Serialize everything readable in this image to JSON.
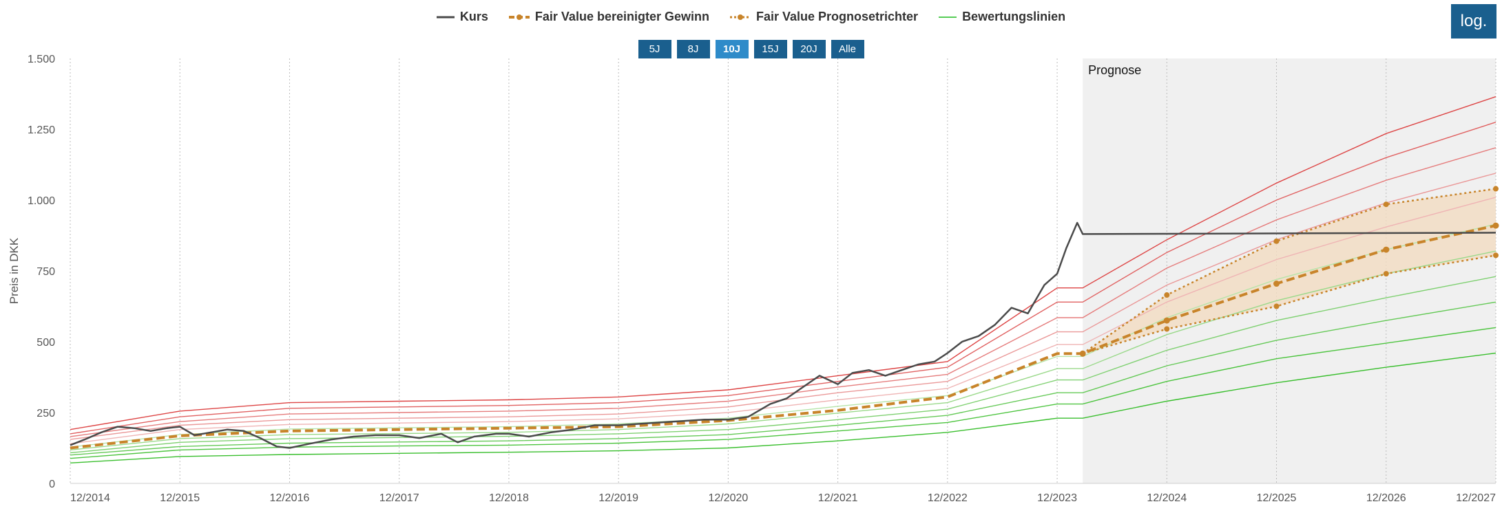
{
  "legend": {
    "kurs": "Kurs",
    "fv_gewinn": "Fair Value bereinigter Gewinn",
    "fv_trichter": "Fair Value Prognosetrichter",
    "bewertung": "Bewertungslinien"
  },
  "range_buttons": [
    {
      "label": "5J",
      "active": false
    },
    {
      "label": "8J",
      "active": false
    },
    {
      "label": "10J",
      "active": true
    },
    {
      "label": "15J",
      "active": false
    },
    {
      "label": "20J",
      "active": false
    },
    {
      "label": "Alle",
      "active": false
    }
  ],
  "log_button": "log.",
  "colors": {
    "kurs": "#4a4a4a",
    "fair_value": "#c8842a",
    "funnel_fill": "#f3dcc2",
    "forecast_bg": "#f0f0f0",
    "band_red": "#e05a5a",
    "band_green": "#55cc55",
    "button": "#1a5f8e",
    "button_active": "#2e8bc9"
  },
  "chart_data": {
    "type": "line",
    "ylabel": "Preis in DKK",
    "ylim": [
      0,
      1500
    ],
    "yticks": [
      0,
      250,
      500,
      750,
      1000,
      1250,
      1500
    ],
    "ytick_labels": [
      "0",
      "250",
      "500",
      "750",
      "1.000",
      "1.250",
      "1.500"
    ],
    "xlim": [
      2014.917,
      2027.917
    ],
    "xticks": [
      2014.917,
      2015.917,
      2016.917,
      2017.917,
      2018.917,
      2019.917,
      2020.917,
      2021.917,
      2022.917,
      2023.917,
      2024.917,
      2025.917,
      2026.917,
      2027.917
    ],
    "xtick_labels": [
      "12/2014",
      "12/2015",
      "12/2016",
      "12/2017",
      "12/2018",
      "12/2019",
      "12/2020",
      "12/2021",
      "12/2022",
      "12/2023",
      "12/2024",
      "12/2025",
      "12/2026",
      "12/2027"
    ],
    "forecast_label": "Prognose",
    "forecast_start": 2024.15,
    "series": [
      {
        "name": "Kurs",
        "x": [
          2014.917,
          2015.05,
          2015.2,
          2015.35,
          2015.5,
          2015.65,
          2015.8,
          2015.917,
          2016.05,
          2016.2,
          2016.35,
          2016.5,
          2016.65,
          2016.8,
          2016.917,
          2017.1,
          2017.3,
          2017.5,
          2017.7,
          2017.917,
          2018.1,
          2018.3,
          2018.45,
          2018.6,
          2018.8,
          2018.917,
          2019.1,
          2019.3,
          2019.5,
          2019.7,
          2019.917,
          2020.1,
          2020.3,
          2020.5,
          2020.7,
          2020.917,
          2021.1,
          2021.3,
          2021.45,
          2021.6,
          2021.75,
          2021.917,
          2022.05,
          2022.2,
          2022.35,
          2022.5,
          2022.65,
          2022.8,
          2022.917,
          2023.05,
          2023.2,
          2023.35,
          2023.5,
          2023.65,
          2023.8,
          2023.917,
          2024.0,
          2024.1,
          2024.15,
          2027.917
        ],
        "y": [
          135,
          155,
          180,
          200,
          195,
          185,
          195,
          200,
          170,
          180,
          190,
          185,
          160,
          130,
          125,
          140,
          155,
          165,
          170,
          170,
          160,
          175,
          145,
          165,
          175,
          175,
          165,
          180,
          190,
          205,
          205,
          210,
          215,
          220,
          225,
          225,
          235,
          280,
          300,
          340,
          380,
          350,
          390,
          400,
          380,
          400,
          420,
          430,
          460,
          500,
          520,
          560,
          620,
          600,
          700,
          740,
          830,
          920,
          880,
          885
        ]
      },
      {
        "name": "Fair Value bereinigter Gewinn",
        "x": [
          2014.917,
          2015.917,
          2016.917,
          2017.917,
          2018.917,
          2019.917,
          2020.917,
          2021.917,
          2022.917,
          2023.917,
          2024.15,
          2024.917,
          2025.917,
          2026.917,
          2027.917
        ],
        "y": [
          125,
          168,
          185,
          190,
          195,
          200,
          222,
          258,
          305,
          458,
          458,
          575,
          705,
          825,
          910
        ]
      },
      {
        "name": "Fair Value Prognosetrichter",
        "x": [
          2024.15,
          2024.917,
          2025.917,
          2026.917,
          2027.917
        ],
        "upper": [
          458,
          665,
          855,
          985,
          1040
        ],
        "lower": [
          458,
          545,
          625,
          740,
          805
        ]
      }
    ],
    "valuation_lines": {
      "name": "Bewertungslinien",
      "x": [
        2014.917,
        2015.917,
        2016.917,
        2017.917,
        2018.917,
        2019.917,
        2020.917,
        2021.917,
        2022.917,
        2023.917,
        2024.15,
        2024.917,
        2025.917,
        2026.917,
        2027.917
      ],
      "lines": [
        [
          190,
          255,
          285,
          290,
          295,
          305,
          330,
          380,
          430,
          690,
          690,
          860,
          1060,
          1235,
          1365
        ],
        [
          175,
          235,
          265,
          270,
          275,
          285,
          310,
          360,
          410,
          640,
          640,
          815,
          1000,
          1150,
          1275
        ],
        [
          165,
          218,
          245,
          250,
          255,
          265,
          290,
          340,
          385,
          585,
          585,
          760,
          930,
          1070,
          1185
        ],
        [
          155,
          205,
          225,
          230,
          235,
          245,
          270,
          320,
          360,
          535,
          535,
          700,
          860,
          990,
          1095
        ],
        [
          140,
          190,
          208,
          213,
          218,
          228,
          250,
          295,
          335,
          490,
          490,
          640,
          790,
          905,
          1010
        ],
        [
          128,
          172,
          192,
          196,
          200,
          210,
          230,
          272,
          310,
          448,
          448,
          585,
          720,
          825,
          915
        ],
        [
          118,
          158,
          172,
          176,
          180,
          190,
          210,
          248,
          285,
          405,
          405,
          525,
          645,
          740,
          820
        ],
        [
          108,
          145,
          158,
          162,
          166,
          175,
          190,
          225,
          262,
          365,
          365,
          470,
          575,
          655,
          730
        ],
        [
          100,
          130,
          142,
          146,
          150,
          158,
          172,
          205,
          240,
          320,
          320,
          415,
          505,
          575,
          640
        ],
        [
          88,
          118,
          128,
          132,
          135,
          142,
          155,
          185,
          215,
          280,
          280,
          360,
          440,
          495,
          550
        ],
        [
          72,
          95,
          102,
          106,
          110,
          115,
          125,
          150,
          180,
          230,
          230,
          290,
          355,
          410,
          460
        ]
      ]
    }
  }
}
